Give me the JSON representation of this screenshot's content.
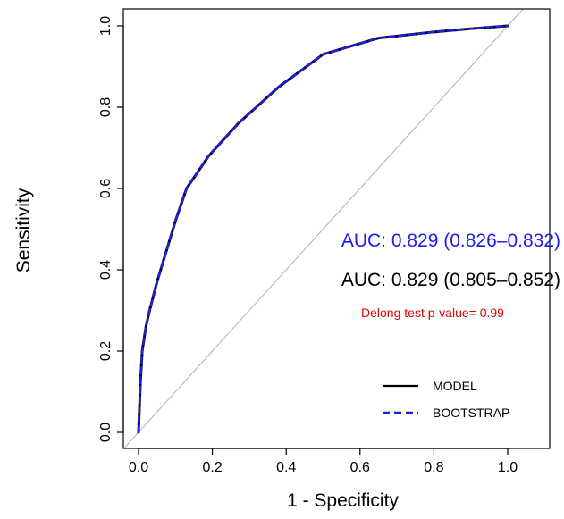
{
  "chart_data": {
    "type": "line",
    "title": "",
    "xlabel": "1 - Specificity",
    "ylabel": "Sensitivity",
    "xlim": [
      -0.1,
      1.1
    ],
    "ylim": [
      0.0,
      1.0
    ],
    "x_ticks": [
      "0.0",
      "0.2",
      "0.4",
      "0.6",
      "0.8",
      "1.0"
    ],
    "y_ticks": [
      "0.0",
      "0.2",
      "0.4",
      "0.6",
      "0.8",
      "1.0"
    ],
    "grid": false,
    "diagonal_reference": true,
    "series": [
      {
        "name": "MODEL",
        "color": "#000000",
        "line_style": "solid",
        "x": [
          0.0,
          0.005,
          0.01,
          0.02,
          0.03,
          0.05,
          0.07,
          0.1,
          0.13,
          0.19,
          0.27,
          0.38,
          0.5,
          0.65,
          0.8,
          0.9,
          1.0
        ],
        "y": [
          0.0,
          0.12,
          0.2,
          0.26,
          0.3,
          0.37,
          0.43,
          0.52,
          0.6,
          0.68,
          0.76,
          0.85,
          0.93,
          0.97,
          0.985,
          0.993,
          1.0
        ]
      },
      {
        "name": "BOOTSTRAP",
        "color": "#1e1ee6",
        "line_style": "dashed",
        "x": [
          0.0,
          0.005,
          0.01,
          0.02,
          0.03,
          0.05,
          0.07,
          0.1,
          0.13,
          0.19,
          0.27,
          0.38,
          0.5,
          0.65,
          0.8,
          0.9,
          1.0
        ],
        "y": [
          0.0,
          0.12,
          0.2,
          0.26,
          0.3,
          0.37,
          0.43,
          0.52,
          0.6,
          0.68,
          0.76,
          0.85,
          0.93,
          0.97,
          0.985,
          0.993,
          1.0
        ]
      }
    ],
    "annotations": [
      {
        "text": "AUC: 0.829 (0.826–0.832)",
        "color": "#1e1ee6"
      },
      {
        "text": "AUC: 0.829 (0.805–0.852)",
        "color": "#000000"
      },
      {
        "text": "Delong test p-value= 0.99",
        "color": "#e00000"
      }
    ],
    "legend": {
      "placement": "bottom-right",
      "entries": [
        "MODEL",
        "BOOTSTRAP"
      ]
    }
  }
}
